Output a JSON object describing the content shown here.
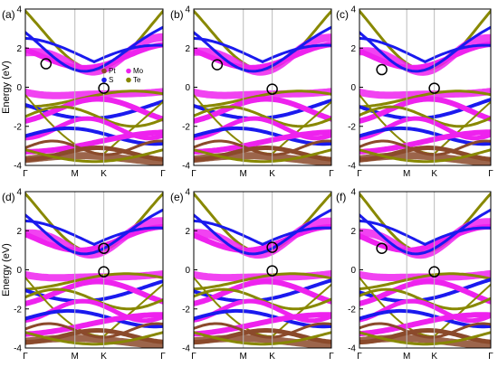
{
  "chart_data": [
    {
      "panel": "(a)",
      "type": "line",
      "ylabel": "Energy (eV)",
      "ylim": [
        -4,
        4
      ],
      "yticks": [
        -4,
        -2,
        0,
        2,
        4
      ],
      "xticks": [
        "Γ",
        "M",
        "K",
        "Γ"
      ],
      "legend": [
        "Pt",
        "Mo",
        "S",
        "Te"
      ],
      "circled_points": [
        {
          "k": 0.15,
          "E": 1.2
        },
        {
          "k": 0.57,
          "E": -0.05
        }
      ]
    },
    {
      "panel": "(b)",
      "type": "line",
      "ylabel": "",
      "ylim": [
        -4,
        4
      ],
      "yticks": [
        -4,
        -2,
        0,
        2,
        4
      ],
      "xticks": [
        "Γ",
        "M",
        "K",
        "Γ"
      ],
      "circled_points": [
        {
          "k": 0.17,
          "E": 1.15
        },
        {
          "k": 0.57,
          "E": -0.1
        }
      ]
    },
    {
      "panel": "(c)",
      "type": "line",
      "ylabel": "",
      "ylim": [
        -4,
        4
      ],
      "yticks": [
        -4,
        -2,
        0,
        2,
        4
      ],
      "xticks": [
        "Γ",
        "M",
        "K",
        "Γ"
      ],
      "circled_points": [
        {
          "k": 0.17,
          "E": 0.9
        },
        {
          "k": 0.57,
          "E": -0.05
        }
      ]
    },
    {
      "panel": "(d)",
      "type": "line",
      "ylabel": "Energy (eV)",
      "ylim": [
        -4,
        4
      ],
      "yticks": [
        -4,
        -2,
        0,
        2,
        4
      ],
      "xticks": [
        "Γ",
        "M",
        "K",
        "Γ"
      ],
      "circled_points": [
        {
          "k": 0.57,
          "E": 1.1
        },
        {
          "k": 0.57,
          "E": -0.1
        }
      ]
    },
    {
      "panel": "(e)",
      "type": "line",
      "ylabel": "",
      "ylim": [
        -4,
        4
      ],
      "yticks": [
        -4,
        -2,
        0,
        2,
        4
      ],
      "xticks": [
        "Γ",
        "M",
        "K",
        "Γ"
      ],
      "circled_points": [
        {
          "k": 0.57,
          "E": 1.15
        },
        {
          "k": 0.57,
          "E": -0.05
        }
      ]
    },
    {
      "panel": "(f)",
      "type": "line",
      "ylabel": "",
      "ylim": [
        -4,
        4
      ],
      "yticks": [
        -4,
        -2,
        0,
        2,
        4
      ],
      "xticks": [
        "Γ",
        "M",
        "K",
        "Γ"
      ],
      "circled_points": [
        {
          "k": 0.17,
          "E": 1.1
        },
        {
          "k": 0.57,
          "E": -0.1
        }
      ]
    }
  ],
  "colors": {
    "Pt": "#8b4a2b",
    "Mo": "#ee22ee",
    "S": "#1a1aee",
    "Te": "#888800",
    "axis": "#000000",
    "kline": "#bbbbbb"
  }
}
